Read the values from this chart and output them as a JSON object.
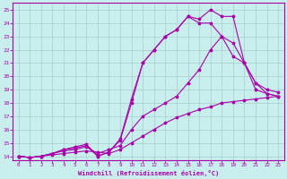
{
  "xlabel": "Windchill (Refroidissement éolien,°C)",
  "bg_color": "#c8eeed",
  "grid_color": "#a8ccc8",
  "line_color": "#aa00aa",
  "xlim_min": -0.5,
  "xlim_max": 23.5,
  "ylim_min": 13.7,
  "ylim_max": 25.5,
  "yticks": [
    14,
    15,
    16,
    17,
    18,
    19,
    20,
    21,
    22,
    23,
    24,
    25
  ],
  "xticks": [
    0,
    1,
    2,
    3,
    4,
    5,
    6,
    7,
    8,
    9,
    10,
    11,
    12,
    13,
    14,
    15,
    16,
    17,
    18,
    19,
    20,
    21,
    22,
    23
  ],
  "line1_x": [
    0,
    1,
    2,
    3,
    4,
    5,
    6,
    7,
    8,
    9,
    10,
    11,
    12,
    13,
    14,
    15,
    16,
    17,
    18,
    19,
    20,
    21,
    22,
    23
  ],
  "line1_y": [
    14.0,
    13.9,
    14.0,
    14.1,
    14.2,
    14.3,
    14.4,
    14.3,
    14.2,
    14.5,
    15.0,
    15.5,
    16.0,
    16.5,
    16.9,
    17.2,
    17.5,
    17.7,
    18.0,
    18.1,
    18.2,
    18.3,
    18.4,
    18.5
  ],
  "line2_x": [
    0,
    1,
    2,
    3,
    4,
    5,
    6,
    7,
    8,
    9,
    10,
    11,
    12,
    13,
    14,
    15,
    16,
    17,
    18,
    19,
    20,
    21,
    22,
    23
  ],
  "line2_y": [
    14.0,
    13.9,
    14.0,
    14.2,
    14.4,
    14.5,
    14.7,
    14.2,
    14.5,
    14.8,
    16.0,
    17.0,
    17.5,
    18.0,
    18.5,
    19.5,
    20.5,
    22.0,
    23.0,
    22.5,
    21.0,
    19.5,
    19.0,
    18.8
  ],
  "line3_x": [
    0,
    1,
    2,
    3,
    4,
    5,
    6,
    7,
    8,
    9,
    10,
    11,
    12,
    13,
    14,
    15,
    16,
    17,
    18,
    19,
    20,
    21,
    22,
    23
  ],
  "line3_y": [
    14.0,
    13.9,
    14.0,
    14.2,
    14.5,
    14.6,
    14.8,
    14.0,
    14.3,
    15.2,
    18.0,
    21.0,
    22.0,
    23.0,
    23.5,
    24.5,
    24.0,
    24.0,
    23.0,
    21.5,
    21.0,
    19.0,
    18.7,
    18.5
  ],
  "line4_x": [
    0,
    1,
    2,
    3,
    4,
    5,
    6,
    7,
    8,
    9,
    10,
    11,
    12,
    13,
    14,
    15,
    16,
    17,
    18,
    19,
    20,
    21,
    22,
    23
  ],
  "line4_y": [
    14.0,
    13.9,
    14.0,
    14.2,
    14.5,
    14.7,
    14.9,
    14.0,
    14.3,
    15.3,
    18.3,
    21.0,
    22.0,
    23.0,
    23.5,
    24.5,
    24.3,
    25.0,
    24.5,
    24.5,
    21.0,
    19.5,
    18.7,
    18.5
  ]
}
